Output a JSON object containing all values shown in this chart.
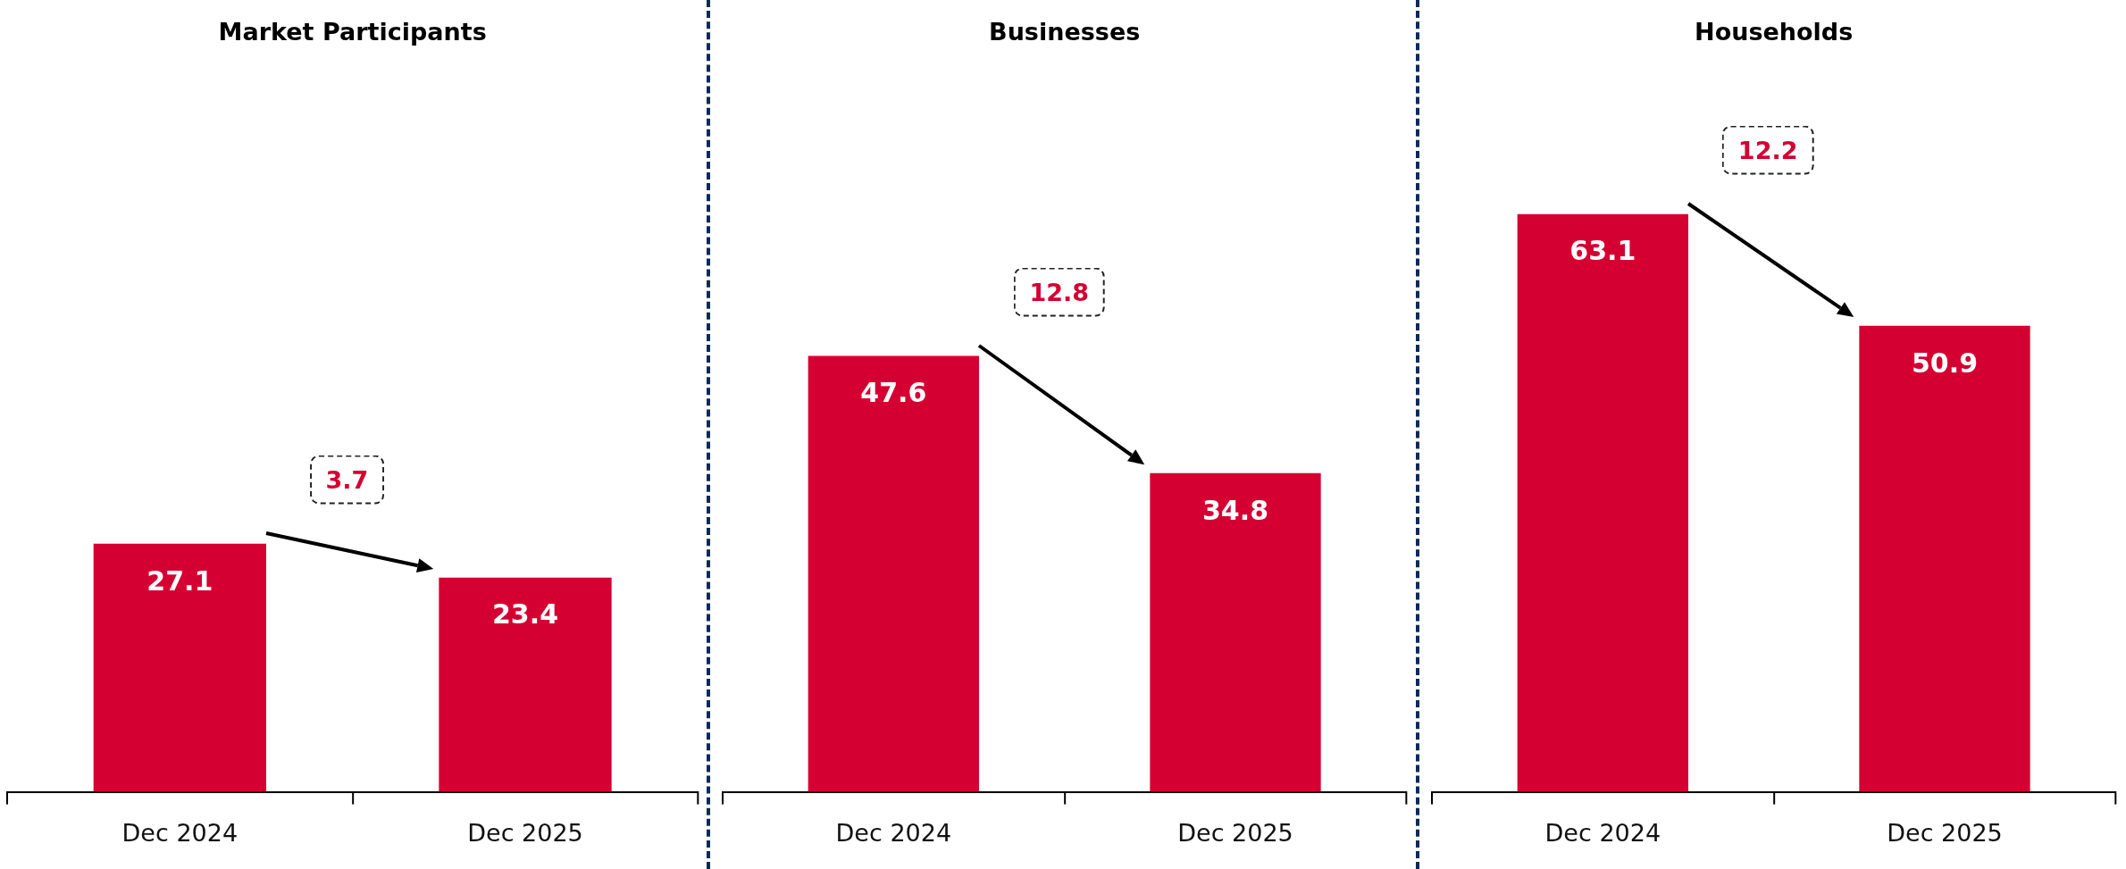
{
  "chart_data": [
    {
      "type": "bar",
      "title": "Market Participants",
      "categories": [
        "Dec 2024",
        "Dec 2025"
      ],
      "values": [
        27.1,
        23.4
      ],
      "color": "#d50032",
      "tick_labels": "x",
      "grid": false,
      "legend": false,
      "data_labels": true,
      "annotations": [
        "3.7"
      ]
    },
    {
      "type": "bar",
      "title": "Businesses",
      "categories": [
        "Dec 2024",
        "Dec 2025"
      ],
      "values": [
        47.6,
        34.8
      ],
      "color": "#d50032",
      "tick_labels": "x",
      "grid": false,
      "legend": false,
      "data_labels": true,
      "annotations": [
        "12.8"
      ]
    },
    {
      "type": "bar",
      "title": "Households",
      "categories": [
        "Dec 2024",
        "Dec 2025"
      ],
      "values": [
        63.1,
        50.9
      ],
      "color": "#d50032",
      "tick_labels": "x",
      "grid": false,
      "legend": false,
      "data_labels": true,
      "annotations": [
        "12.2"
      ]
    }
  ]
}
